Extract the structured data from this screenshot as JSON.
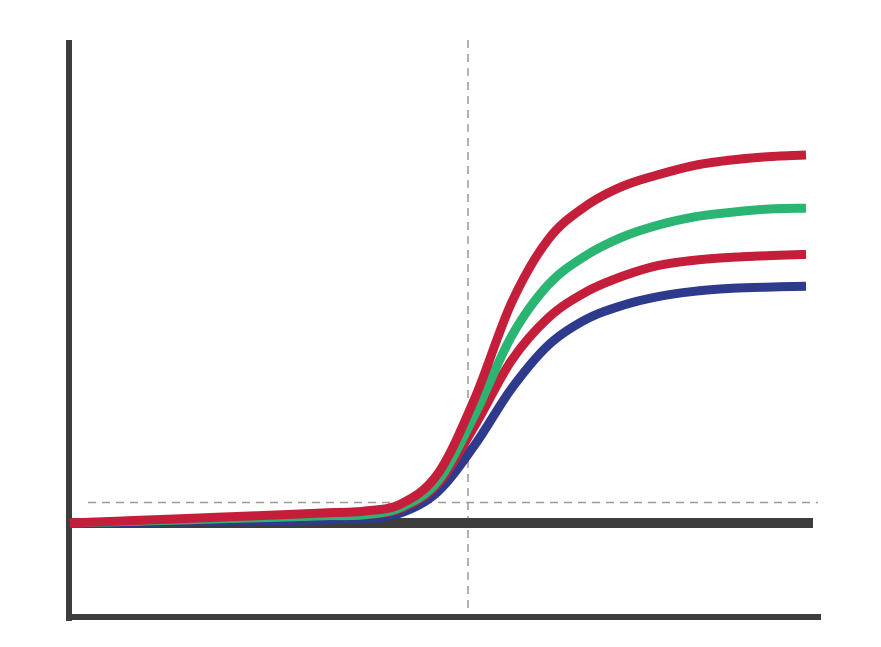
{
  "chart_data": {
    "type": "line",
    "title": "",
    "xlabel": "",
    "ylabel": "",
    "xlim": [
      0,
      100
    ],
    "ylim": [
      -20,
      100
    ],
    "x": [
      0,
      10,
      20,
      30,
      35,
      40,
      45,
      50,
      55,
      60,
      65,
      70,
      75,
      80,
      85,
      90,
      95,
      100
    ],
    "threshold": 5,
    "threshold_x": 50,
    "baseline": 0,
    "series": [
      {
        "color": "#c41e3a",
        "values": [
          0,
          0.7,
          1.4,
          2.1,
          2.5,
          2.9,
          4.7,
          12.1,
          30.5,
          53.9,
          69.4,
          77.4,
          82.3,
          85.2,
          87.5,
          88.8,
          89.6,
          90.0
        ]
      },
      {
        "color": "#2ab573",
        "values": [
          0,
          0.5,
          1.0,
          1.5,
          1.8,
          2.0,
          3.9,
          10.3,
          26.5,
          45.7,
          58.3,
          65.3,
          69.9,
          72.9,
          74.9,
          76.0,
          76.8,
          77.0
        ]
      },
      {
        "color": "#c41e3a",
        "values": [
          0,
          0.5,
          1.0,
          1.5,
          1.8,
          2.0,
          3.6,
          9.6,
          23.8,
          39.8,
          50.2,
          56.4,
          60.3,
          63.0,
          64.3,
          65.0,
          65.4,
          65.7
        ]
      },
      {
        "color": "#2e3a8c",
        "values": [
          0,
          0.2,
          0.4,
          0.6,
          0.8,
          1.0,
          2.5,
          7.7,
          19.1,
          32.9,
          43.5,
          49.7,
          53.2,
          55.4,
          56.7,
          57.4,
          57.7,
          57.9
        ]
      }
    ]
  },
  "colors": {
    "axis": "#3d3d3d",
    "guide": "#9a9a9a"
  }
}
